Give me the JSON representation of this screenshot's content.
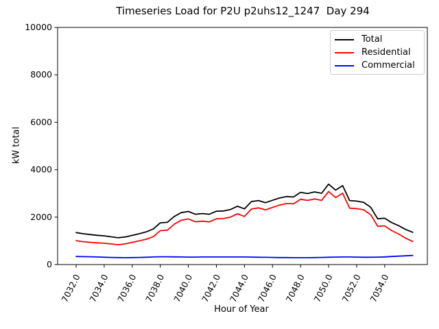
{
  "chart_data": {
    "type": "line",
    "title": "Timeseries Load for P2U p2uhs12_1247  Day 294",
    "xlabel": "Hour of Year",
    "ylabel": "kW total",
    "xlim": [
      7030.68,
      7057.04
    ],
    "ylim": [
      0,
      10000
    ],
    "grid": false,
    "legend_position": "upper right",
    "xticks": [
      7032,
      7034,
      7036,
      7038,
      7040,
      7042,
      7044,
      7046,
      7048,
      7050,
      7052,
      7054
    ],
    "xtick_labels": [
      "7032.0",
      "7034.0",
      "7036.0",
      "7038.0",
      "7040.0",
      "7042.0",
      "7044.0",
      "7046.0",
      "7048.0",
      "7050.0",
      "7052.0",
      "7054.0"
    ],
    "yticks": [
      0,
      2000,
      4000,
      6000,
      8000,
      10000
    ],
    "ytick_labels": [
      "0",
      "2000",
      "4000",
      "6000",
      "8000",
      "10000"
    ],
    "x": [
      7032.0,
      7032.5,
      7033.0,
      7033.5,
      7034.0,
      7034.5,
      7035.0,
      7035.5,
      7036.0,
      7036.5,
      7037.0,
      7037.5,
      7038.0,
      7038.5,
      7039.0,
      7039.5,
      7040.0,
      7040.5,
      7041.0,
      7041.5,
      7042.0,
      7042.5,
      7043.0,
      7043.5,
      7044.0,
      7044.5,
      7045.0,
      7045.5,
      7046.0,
      7046.5,
      7047.0,
      7047.5,
      7048.0,
      7048.5,
      7049.0,
      7049.5,
      7050.0,
      7050.5,
      7051.0,
      7051.5,
      7052.0,
      7052.5,
      7053.0,
      7053.5,
      7054.0,
      7054.5,
      7055.0,
      7055.5,
      7056.0
    ],
    "series": [
      {
        "name": "Total",
        "color": "#000000",
        "values": [
          1350,
          1300,
          1265,
          1235,
          1210,
          1170,
          1130,
          1165,
          1230,
          1300,
          1380,
          1500,
          1760,
          1780,
          2030,
          2190,
          2240,
          2120,
          2150,
          2120,
          2250,
          2260,
          2320,
          2460,
          2350,
          2660,
          2700,
          2610,
          2710,
          2805,
          2870,
          2850,
          3045,
          2995,
          3065,
          3005,
          3390,
          3140,
          3330,
          2700,
          2675,
          2620,
          2415,
          1930,
          1955,
          1770,
          1640,
          1480,
          1360
        ]
      },
      {
        "name": "Residential",
        "color": "#ff0000",
        "values": [
          1010,
          965,
          935,
          915,
          900,
          870,
          835,
          875,
          935,
          1000,
          1070,
          1180,
          1430,
          1450,
          1705,
          1870,
          1925,
          1805,
          1830,
          1800,
          1930,
          1940,
          2000,
          2140,
          2030,
          2345,
          2390,
          2305,
          2410,
          2510,
          2575,
          2560,
          2755,
          2705,
          2770,
          2705,
          3080,
          2825,
          3010,
          2380,
          2360,
          2310,
          2105,
          1615,
          1630,
          1430,
          1285,
          1110,
          975
        ]
      },
      {
        "name": "Commercial",
        "color": "#0000ff",
        "values": [
          340,
          335,
          330,
          320,
          310,
          300,
          295,
          290,
          295,
          300,
          310,
          320,
          330,
          330,
          325,
          320,
          315,
          315,
          320,
          320,
          320,
          320,
          320,
          320,
          320,
          315,
          310,
          305,
          300,
          295,
          295,
          290,
          290,
          290,
          295,
          300,
          310,
          315,
          320,
          320,
          315,
          310,
          310,
          315,
          325,
          340,
          355,
          370,
          385
        ]
      }
    ]
  }
}
